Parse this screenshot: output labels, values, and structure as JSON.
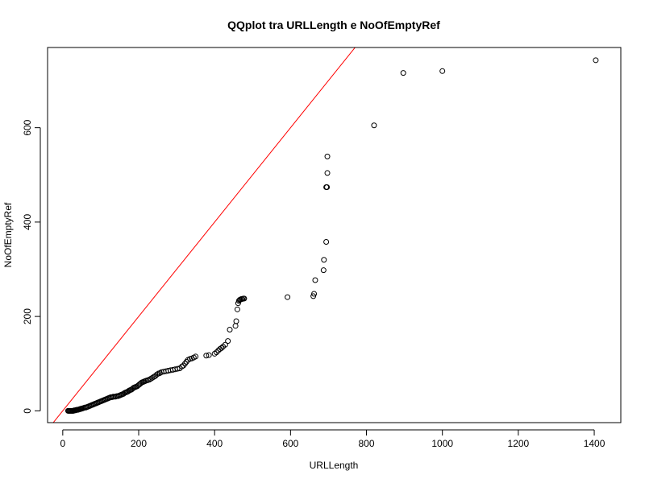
{
  "chart_data": {
    "type": "scatter",
    "title": "QQplot tra URLLength e NoOfEmptyRef",
    "xlabel": "URLLength",
    "ylabel": "NoOfEmptyRef",
    "xlim": [
      -40,
      1470
    ],
    "ylim": [
      -25,
      770
    ],
    "x_ticks": [
      0,
      200,
      400,
      600,
      800,
      1000,
      1200,
      1400
    ],
    "y_ticks": [
      0,
      200,
      400,
      600
    ],
    "reference_line": {
      "slope": 1,
      "intercept": 0,
      "color": "#ff0000"
    },
    "point_color": "#000000",
    "points": [
      [
        14,
        0
      ],
      [
        16,
        0
      ],
      [
        18,
        0
      ],
      [
        20,
        0
      ],
      [
        22,
        0
      ],
      [
        24,
        0
      ],
      [
        26,
        0
      ],
      [
        28,
        0
      ],
      [
        30,
        1
      ],
      [
        32,
        1
      ],
      [
        34,
        1
      ],
      [
        36,
        2
      ],
      [
        38,
        2
      ],
      [
        40,
        2
      ],
      [
        42,
        3
      ],
      [
        44,
        3
      ],
      [
        46,
        4
      ],
      [
        48,
        4
      ],
      [
        50,
        5
      ],
      [
        52,
        5
      ],
      [
        55,
        6
      ],
      [
        58,
        7
      ],
      [
        61,
        7
      ],
      [
        64,
        8
      ],
      [
        67,
        9
      ],
      [
        70,
        10
      ],
      [
        73,
        11
      ],
      [
        76,
        12
      ],
      [
        79,
        13
      ],
      [
        82,
        14
      ],
      [
        85,
        15
      ],
      [
        88,
        16
      ],
      [
        91,
        17
      ],
      [
        94,
        18
      ],
      [
        97,
        19
      ],
      [
        100,
        20
      ],
      [
        103,
        21
      ],
      [
        106,
        22
      ],
      [
        109,
        23
      ],
      [
        112,
        24
      ],
      [
        115,
        25
      ],
      [
        118,
        26
      ],
      [
        121,
        27
      ],
      [
        124,
        28
      ],
      [
        127,
        29
      ],
      [
        130,
        29
      ],
      [
        133,
        30
      ],
      [
        136,
        30
      ],
      [
        139,
        30
      ],
      [
        142,
        31
      ],
      [
        145,
        31
      ],
      [
        148,
        32
      ],
      [
        151,
        33
      ],
      [
        154,
        34
      ],
      [
        157,
        35
      ],
      [
        160,
        36
      ],
      [
        163,
        38
      ],
      [
        166,
        39
      ],
      [
        169,
        40
      ],
      [
        172,
        41
      ],
      [
        175,
        43
      ],
      [
        178,
        44
      ],
      [
        181,
        45
      ],
      [
        184,
        47
      ],
      [
        187,
        49
      ],
      [
        190,
        50
      ],
      [
        193,
        51
      ],
      [
        196,
        52
      ],
      [
        199,
        54
      ],
      [
        202,
        56
      ],
      [
        205,
        58
      ],
      [
        208,
        60
      ],
      [
        211,
        61
      ],
      [
        214,
        62
      ],
      [
        217,
        63
      ],
      [
        220,
        64
      ],
      [
        224,
        65
      ],
      [
        228,
        66
      ],
      [
        232,
        68
      ],
      [
        236,
        70
      ],
      [
        240,
        72
      ],
      [
        244,
        74
      ],
      [
        248,
        77
      ],
      [
        252,
        79
      ],
      [
        256,
        80
      ],
      [
        260,
        82
      ],
      [
        266,
        83
      ],
      [
        272,
        84
      ],
      [
        278,
        85
      ],
      [
        284,
        86
      ],
      [
        290,
        87
      ],
      [
        296,
        88
      ],
      [
        302,
        89
      ],
      [
        308,
        90
      ],
      [
        314,
        94
      ],
      [
        318,
        96
      ],
      [
        322,
        100
      ],
      [
        326,
        104
      ],
      [
        330,
        108
      ],
      [
        335,
        110
      ],
      [
        340,
        111
      ],
      [
        345,
        113
      ],
      [
        350,
        115
      ],
      [
        378,
        117
      ],
      [
        385,
        118
      ],
      [
        400,
        121
      ],
      [
        405,
        124
      ],
      [
        410,
        128
      ],
      [
        414,
        131
      ],
      [
        418,
        133
      ],
      [
        422,
        136
      ],
      [
        428,
        140
      ],
      [
        435,
        148
      ],
      [
        440,
        172
      ],
      [
        455,
        180
      ],
      [
        457,
        190
      ],
      [
        460,
        215
      ],
      [
        462,
        228
      ],
      [
        464,
        233
      ],
      [
        466,
        235
      ],
      [
        468,
        236
      ],
      [
        471,
        237
      ],
      [
        473,
        237
      ],
      [
        476,
        238
      ],
      [
        478,
        238
      ],
      [
        592,
        241
      ],
      [
        660,
        243
      ],
      [
        662,
        248
      ],
      [
        665,
        277
      ],
      [
        687,
        298
      ],
      [
        688,
        320
      ],
      [
        694,
        358
      ],
      [
        694,
        474
      ],
      [
        696,
        474
      ],
      [
        697,
        504
      ],
      [
        697,
        539
      ],
      [
        820,
        605
      ],
      [
        897,
        716
      ],
      [
        1000,
        720
      ],
      [
        1404,
        743
      ]
    ]
  }
}
